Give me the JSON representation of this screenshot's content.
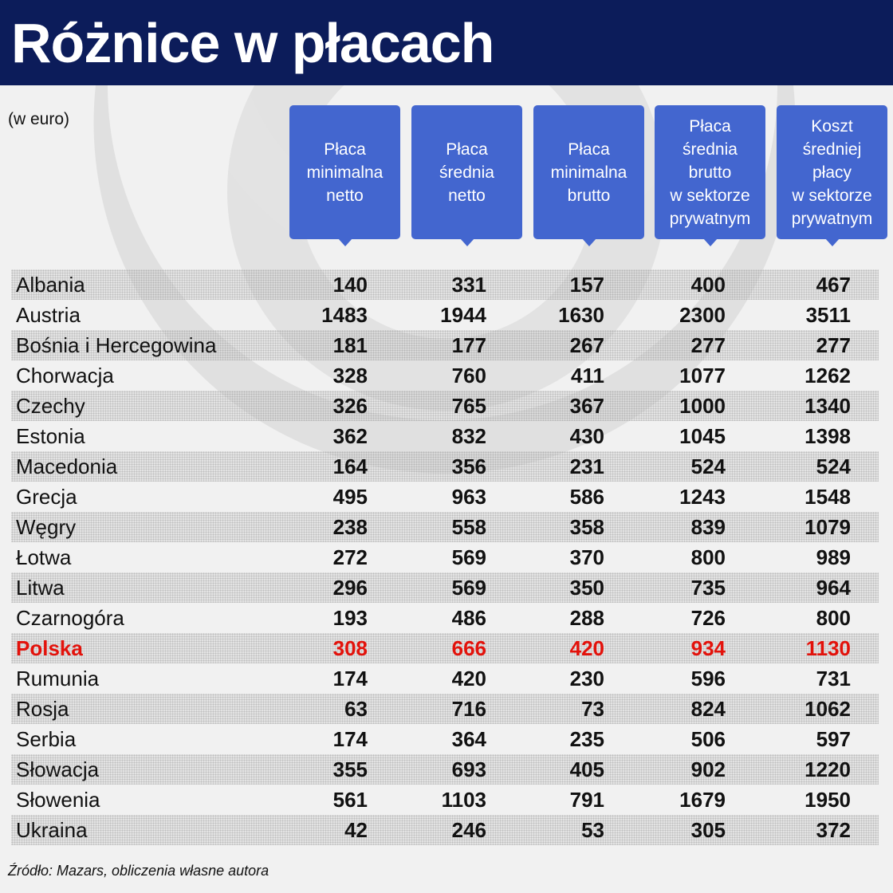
{
  "title": "Różnice w płacach",
  "unit_note": "(w euro)",
  "source": "Źródło: Mazars, obliczenia własne autora",
  "colors": {
    "header_bg": "#0c1c5a",
    "column_header_bg": "#4366cf",
    "highlight": "#e3120b"
  },
  "chart_data": {
    "type": "table",
    "title": "Różnice w płacach",
    "unit": "(w euro)",
    "columns": [
      "Płaca\nminimalna\nnetto",
      "Płaca\nśrednia\nnetto",
      "Płaca\nminimalna\nbrutto",
      "Płaca\nśrednia\nbrutto\nw sektorze\nprywatnym",
      "Koszt\nśredniej\npłacy\nw sektorze\nprywatnym"
    ],
    "rows": [
      {
        "country": "Albania",
        "values": [
          "140",
          "331",
          "157",
          "400",
          "467"
        ]
      },
      {
        "country": "Austria",
        "values": [
          "1483",
          "1944",
          "1630",
          "2300",
          "3511"
        ]
      },
      {
        "country": "Bośnia i Hercegowina",
        "values": [
          "181",
          "177",
          "267",
          "277",
          "277"
        ]
      },
      {
        "country": "Chorwacja",
        "values": [
          "328",
          "760",
          "411",
          "1077",
          "1262"
        ]
      },
      {
        "country": "Czechy",
        "values": [
          "326",
          "765",
          "367",
          "1000",
          "1340"
        ]
      },
      {
        "country": "Estonia",
        "values": [
          "362",
          "832",
          "430",
          "1045",
          "1398"
        ]
      },
      {
        "country": "Macedonia",
        "values": [
          "164",
          "356",
          "231",
          "524",
          "524"
        ]
      },
      {
        "country": "Grecja",
        "values": [
          "495",
          "963",
          "586",
          "1243",
          "1548"
        ]
      },
      {
        "country": "Węgry",
        "values": [
          "238",
          "558",
          "358",
          "839",
          "1079"
        ]
      },
      {
        "country": "Łotwa",
        "values": [
          "272",
          "569",
          "370",
          "800",
          "989"
        ]
      },
      {
        "country": "Litwa",
        "values": [
          "296",
          "569",
          "350",
          "735",
          "964"
        ]
      },
      {
        "country": "Czarnogóra",
        "values": [
          "193",
          "486",
          "288",
          "726",
          "800"
        ]
      },
      {
        "country": "Polska",
        "values": [
          "308",
          "666",
          "420",
          "934",
          "1130"
        ],
        "highlight": true
      },
      {
        "country": "Rumunia",
        "values": [
          "174",
          "420",
          "230",
          "596",
          "731"
        ]
      },
      {
        "country": "Rosja",
        "values": [
          "63",
          "716",
          "73",
          "824",
          "1062"
        ]
      },
      {
        "country": "Serbia",
        "values": [
          "174",
          "364",
          "235",
          "506",
          "597"
        ]
      },
      {
        "country": "Słowacja",
        "values": [
          "355",
          "693",
          "405",
          "902",
          "1220"
        ]
      },
      {
        "country": "Słowenia",
        "values": [
          "561",
          "1103",
          "791",
          "1679",
          "1950"
        ]
      },
      {
        "country": "Ukraina",
        "values": [
          "42",
          "246",
          "53",
          "305",
          "372"
        ]
      }
    ]
  }
}
